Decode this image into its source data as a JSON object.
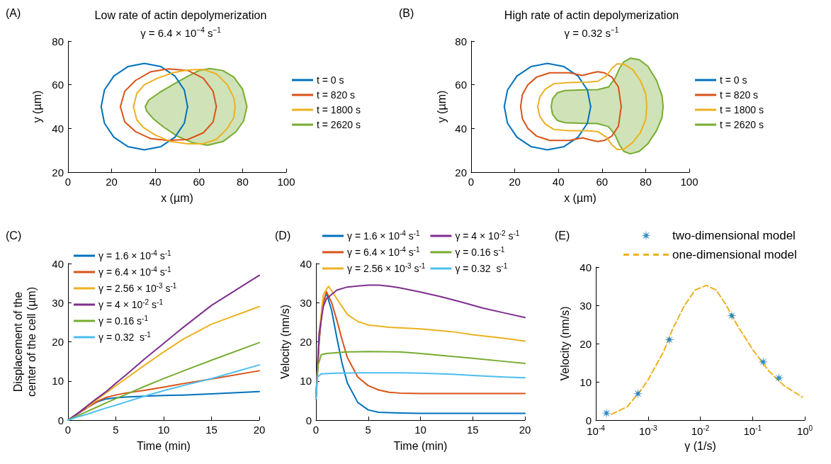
{
  "chart_data": [
    {
      "type": "line",
      "title": "Low rate of actin depolymerization",
      "subtitle": "γ = 6.4 × 10$^{−4}$ s$^{−1}$",
      "xlabel": "x (µm)",
      "ylabel": "y (µm)",
      "annotations": [
        "(A)"
      ],
      "xlim": [
        0,
        100
      ],
      "xticks": [
        0,
        20,
        40,
        60,
        80,
        100
      ],
      "ylim": [
        20,
        80
      ],
      "yticks": [
        20,
        40,
        60,
        80
      ],
      "legend": "right",
      "series": [
        {
          "name": "t = 0 s",
          "color": "#0072bd",
          "x": [
            54.8,
            53.3,
            49,
            42.6,
            35,
            27.4,
            21,
            16.7,
            15.2,
            16.7,
            21,
            27.4,
            35,
            42.6,
            49,
            53.3,
            54.8
          ],
          "values": [
            50,
            57.6,
            64,
            68.3,
            69.8,
            68.3,
            64,
            57.6,
            50,
            42.4,
            36,
            31.7,
            30.2,
            31.7,
            36,
            42.4,
            50
          ]
        },
        {
          "name": "t = 820 s",
          "color": "#d95319",
          "x": [
            24,
            26,
            31,
            38,
            46,
            55,
            62,
            66.5,
            68,
            66.5,
            62,
            55,
            46,
            38,
            31,
            26,
            24
          ],
          "values": [
            50,
            57,
            62,
            66,
            67.3,
            66.5,
            63,
            57,
            50,
            43,
            38,
            35,
            34.5,
            35.3,
            38.5,
            43,
            50
          ]
        },
        {
          "name": "t = 1800 s",
          "color": "#edb120",
          "x": [
            30,
            31.5,
            35,
            41,
            48,
            55,
            62,
            68,
            73,
            76,
            76.6,
            76,
            73,
            68,
            62,
            55,
            47,
            40,
            34.5,
            31.5,
            30
          ],
          "values": [
            50,
            56,
            60,
            63,
            65.5,
            66.8,
            67,
            65,
            60,
            54,
            50,
            45,
            40,
            35,
            33,
            33,
            34,
            37,
            40.5,
            44,
            50
          ]
        },
        {
          "name": "t = 2620 s",
          "color": "#77ac30",
          "type": "area",
          "x": [
            35.4,
            37,
            42,
            48,
            55,
            60,
            65,
            71,
            76,
            80,
            82,
            80.5,
            77,
            71,
            64,
            57,
            50,
            44,
            39,
            36,
            35.4
          ],
          "values": [
            50,
            53,
            56.5,
            60,
            64,
            66.5,
            67.4,
            66.5,
            63.5,
            58,
            50,
            43.5,
            38.5,
            34,
            32.3,
            33.5,
            36.5,
            40.5,
            44.5,
            48,
            50
          ]
        }
      ]
    },
    {
      "type": "line",
      "title": "High rate of actin depolymerization",
      "subtitle": "γ = 0.32 s$^{−1}$",
      "xlabel": "x (µm)",
      "ylabel": "y (µm)",
      "annotations": [
        "(B)"
      ],
      "xlim": [
        0,
        100
      ],
      "xticks": [
        0,
        20,
        40,
        60,
        80,
        100
      ],
      "ylim": [
        20,
        80
      ],
      "yticks": [
        20,
        40,
        60,
        80
      ],
      "legend": "right",
      "series": [
        {
          "name": "t = 0 s",
          "color": "#0072bd",
          "x": [
            54.8,
            53.3,
            49,
            42.6,
            35,
            27.4,
            21,
            16.7,
            15.2,
            16.7,
            21,
            27.4,
            35,
            42.6,
            49,
            53.3,
            54.8
          ],
          "values": [
            50,
            57.6,
            64,
            68.3,
            69.8,
            68.3,
            64,
            57.6,
            50,
            42.4,
            36,
            31.7,
            30.2,
            31.7,
            36,
            42.4,
            50
          ]
        },
        {
          "name": "t = 820 s",
          "color": "#d95319",
          "x": [
            22.7,
            23.5,
            26,
            30,
            36,
            45,
            51,
            55,
            58,
            61,
            64.5,
            67.5,
            68.8,
            67.5,
            64.5,
            61,
            58,
            55,
            51,
            45,
            36,
            30,
            26,
            23.5,
            22.7
          ],
          "values": [
            50,
            55.5,
            60,
            63.5,
            65.5,
            65.5,
            64.3,
            65.3,
            66,
            65.5,
            63.5,
            59,
            50,
            41,
            36.5,
            34.5,
            34,
            34.7,
            35.7,
            34.5,
            34.5,
            36.5,
            40,
            44.5,
            50
          ]
        },
        {
          "name": "t = 1800 s",
          "color": "#edb120",
          "x": [
            30.5,
            31.5,
            34,
            38,
            45,
            53,
            58,
            62,
            64.5,
            67,
            70,
            74,
            77.5,
            80,
            80.5,
            80,
            77.5,
            74,
            70,
            67,
            64.5,
            62,
            58,
            53,
            45,
            38,
            34,
            31.5,
            30.5
          ],
          "values": [
            50,
            54.5,
            58,
            60.5,
            61,
            61.2,
            61.6,
            64,
            67.5,
            69.6,
            69.4,
            67,
            62,
            56,
            50,
            44,
            38,
            33.5,
            30.5,
            30.4,
            32.5,
            36,
            38.6,
            39,
            39,
            39.5,
            42,
            45.5,
            50
          ]
        },
        {
          "name": "t = 2620 s",
          "color": "#77ac30",
          "type": "area",
          "x": [
            36.7,
            37.3,
            39.5,
            43,
            50,
            58,
            63,
            66,
            68,
            70,
            73,
            77,
            81,
            85,
            87.5,
            88,
            87.5,
            85,
            81,
            77,
            73,
            70,
            68,
            66,
            63,
            58,
            50,
            43,
            39.5,
            37.3,
            36.7
          ],
          "values": [
            50,
            53.5,
            56.3,
            57.4,
            57.6,
            57.8,
            59,
            63,
            67.5,
            70.5,
            72.2,
            71.5,
            68.5,
            62,
            55,
            50,
            45,
            39,
            33,
            29.5,
            28.4,
            29.5,
            32.5,
            37,
            40.8,
            42.2,
            42.4,
            42.6,
            43.7,
            46.5,
            50
          ]
        }
      ]
    },
    {
      "type": "line",
      "xlabel": "Time (min)",
      "ylabel": "Displacement of the center of the cell (µm)",
      "annotations": [
        "(C)"
      ],
      "xlim": [
        0,
        20
      ],
      "xticks": [
        0,
        5,
        10,
        15,
        20
      ],
      "ylim": [
        0,
        40
      ],
      "yticks": [
        0,
        10,
        20,
        30,
        40
      ],
      "legend": "top left",
      "x": [
        0,
        1,
        2,
        3,
        4,
        5,
        6,
        8,
        10,
        12,
        15,
        20
      ],
      "series": [
        {
          "name": "γ = 1.6 × 10$^{-4}$ s$^{-1}$",
          "color": "#0072bd",
          "values": [
            0,
            1.6,
            3.2,
            4.6,
            5.4,
            5.7,
            5.9,
            6.1,
            6.3,
            6.4,
            6.7,
            7.3
          ]
        },
        {
          "name": "γ = 6.4 × 10$^{-4}$ s$^{-1}$",
          "color": "#d95319",
          "values": [
            0,
            1.6,
            3.2,
            4.7,
            5.8,
            6.4,
            6.9,
            7.6,
            8.4,
            9.3,
            10.5,
            12.6
          ]
        },
        {
          "name": "γ = 2.56 × 10$^{-3}$ s$^{-1}$",
          "color": "#edb120",
          "values": [
            null,
            null,
            3.2,
            5.2,
            7,
            8.8,
            10.5,
            14,
            17.4,
            20.6,
            24.5,
            29
          ]
        },
        {
          "name": "γ = 4 × 10$^{-2}$ s$^{-1}$",
          "color": "#7e2f8e",
          "values": [
            0,
            1.7,
            3.6,
            5.5,
            7.3,
            9.4,
            11.4,
            15.6,
            19.6,
            23.6,
            29.3,
            37
          ]
        },
        {
          "name": "γ = 0.16 s$^{-1}$",
          "color": "#77ac30",
          "values": [
            0,
            1.1,
            2.2,
            3.3,
            4.4,
            5.5,
            6.5,
            8.6,
            10.6,
            12.5,
            15.3,
            19.8
          ]
        },
        {
          "name": "γ = 0.32  s$^{-1}$",
          "color": "#4dbeee",
          "values": [
            0,
            0.8,
            1.5,
            2.3,
            3.1,
            3.8,
            4.6,
            6.1,
            7.5,
            8.8,
            10.6,
            14.1
          ]
        }
      ]
    },
    {
      "type": "line",
      "xlabel": "Time (min)",
      "ylabel": "Velocity (nm/s)",
      "annotations": [
        "(D)"
      ],
      "xlim": [
        0,
        20
      ],
      "xticks": [
        0,
        5,
        10,
        15,
        20
      ],
      "ylim": [
        0,
        40
      ],
      "yticks": [
        0,
        10,
        20,
        30,
        40
      ],
      "legend": "top",
      "series": [
        {
          "name": "γ = 1.6 × 10$^{-4}$ s$^{-1}$",
          "color": "#0072bd",
          "x": [
            0,
            0.3,
            0.6,
            1,
            1.5,
            2,
            2.5,
            3,
            4,
            5,
            6,
            8,
            10,
            20
          ],
          "values": [
            5.5,
            20,
            29,
            32.5,
            28,
            21,
            14.5,
            9.5,
            4.5,
            2.6,
            2,
            1.8,
            1.7,
            1.7
          ]
        },
        {
          "name": "γ = 6.4 × 10$^{-4}$ s$^{-1}$",
          "color": "#d95319",
          "x": [
            0,
            0.3,
            0.6,
            1,
            1.5,
            2,
            2.5,
            3,
            4,
            5,
            6,
            7,
            8,
            10,
            20
          ],
          "values": [
            5.5,
            20,
            29,
            32.8,
            30,
            25.5,
            20.5,
            16,
            11,
            8.8,
            7.7,
            7.1,
            6.9,
            6.8,
            6.8
          ]
        },
        {
          "name": "γ = 2.56 × 10$^{-3}$ s$^{-1}$",
          "color": "#edb120",
          "x": [
            0,
            0.3,
            0.7,
            1.2,
            2,
            3,
            4,
            5,
            7,
            10,
            13,
            15,
            18,
            20
          ],
          "values": [
            5.5,
            22,
            32,
            34.2,
            31,
            27,
            25.2,
            24.3,
            23.7,
            23.3,
            22.6,
            21.8,
            20.9,
            20.2
          ]
        },
        {
          "name": "γ = 4 × 10$^{-2}$ s$^{-1}$",
          "color": "#7e2f8e",
          "x": [
            0,
            0.3,
            0.7,
            1,
            2,
            3,
            5,
            6,
            7,
            8,
            10,
            12,
            14,
            16,
            18,
            20
          ],
          "values": [
            5.5,
            22,
            29,
            31,
            33.2,
            34,
            34.5,
            34.5,
            34.2,
            33.8,
            32.7,
            31.5,
            30.1,
            28.6,
            27.4,
            26.2
          ]
        },
        {
          "name": "γ = 0.16 s$^{-1}$",
          "color": "#77ac30",
          "x": [
            0,
            0.2,
            0.5,
            1,
            3,
            5,
            8,
            10,
            12,
            15,
            18,
            20
          ],
          "values": [
            5.5,
            14,
            16.7,
            17,
            17.4,
            17.5,
            17.4,
            17,
            16.5,
            15.8,
            15,
            14.5
          ]
        },
        {
          "name": "γ = 0.32  s$^{-1}$",
          "color": "#4dbeee",
          "x": [
            0,
            0.15,
            0.5,
            2,
            5,
            8,
            10,
            13,
            15,
            18,
            20
          ],
          "values": [
            5.5,
            11,
            11.8,
            12,
            12.1,
            12.1,
            12,
            11.7,
            11.4,
            11,
            10.8
          ]
        }
      ]
    },
    {
      "type": "scatter",
      "xlabel": "γ (1/s)",
      "ylabel": "Velocity (nm/s)",
      "annotations": [
        "(E)"
      ],
      "log": "x",
      "xlim": [
        0.0001,
        1
      ],
      "xticks": [
        {
          "value": 0.0001,
          "label": "10$^{-4}$"
        },
        {
          "value": 0.001,
          "label": "10$^{-3}$"
        },
        {
          "value": 0.01,
          "label": "10$^{-2}$"
        },
        {
          "value": 0.1,
          "label": "10$^{-1}$"
        },
        {
          "value": 1,
          "label": "10$^{0}$"
        }
      ],
      "ylim": [
        0,
        40
      ],
      "yticks": [
        0,
        10,
        20,
        30,
        40
      ],
      "legend": "top",
      "series": [
        {
          "name": "two-dimensional model",
          "color": "#0072bd",
          "marker": "star",
          "x": [
            0.00016,
            0.00064,
            0.00256,
            0.04,
            0.16,
            0.32
          ],
          "values": [
            1.8,
            6.9,
            21,
            27.3,
            15.2,
            11
          ]
        },
        {
          "name": "one-dimensional model",
          "color": "#edb120",
          "type": "line",
          "line_style": "dashed",
          "x": [
            0.0002,
            0.0004,
            0.0007,
            0.001,
            0.002,
            0.003,
            0.005,
            0.008,
            0.013,
            0.02,
            0.03,
            0.05,
            0.1,
            0.2,
            0.4,
            0.9
          ],
          "values": [
            1.5,
            3.5,
            7.5,
            10.5,
            18,
            24,
            30,
            34,
            35.2,
            34,
            30.5,
            25,
            18.5,
            13,
            9,
            6
          ]
        }
      ]
    }
  ]
}
